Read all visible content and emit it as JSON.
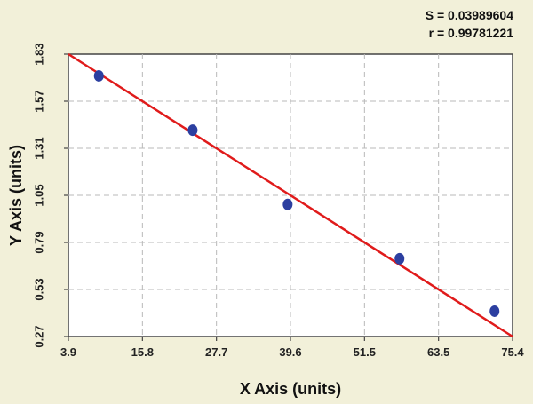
{
  "stats": {
    "s_label": "S = 0.03989604",
    "r_label": "r = 0.99781221"
  },
  "chart_data": {
    "type": "scatter",
    "title": "",
    "xlabel": "X Axis (units)",
    "ylabel": "Y Axis (units)",
    "xlim": [
      3.9,
      75.4
    ],
    "ylim": [
      0.27,
      1.83
    ],
    "x_ticks": [
      "3.9",
      "15.8",
      "27.7",
      "39.6",
      "51.5",
      "63.5",
      "75.4"
    ],
    "y_ticks": [
      "0.27",
      "0.53",
      "0.79",
      "1.05",
      "1.31",
      "1.57",
      "1.83"
    ],
    "grid": true,
    "points": [
      {
        "x": 8.8,
        "y": 1.71
      },
      {
        "x": 23.9,
        "y": 1.41
      },
      {
        "x": 39.2,
        "y": 1.0
      },
      {
        "x": 57.2,
        "y": 0.7
      },
      {
        "x": 72.5,
        "y": 0.41
      }
    ],
    "fit_line": {
      "x": [
        3.9,
        75.4
      ],
      "y": [
        1.83,
        0.27
      ]
    },
    "colors": {
      "points": "#2c3fa0",
      "fit_line": "#e01b1b"
    }
  }
}
